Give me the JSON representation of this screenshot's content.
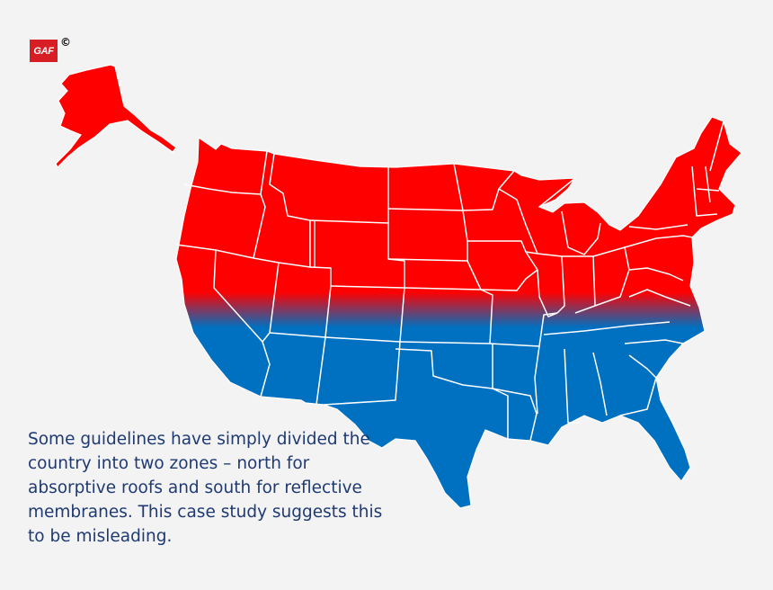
{
  "logo": {
    "text": "GAF",
    "copyright": "©"
  },
  "caption": "Some guidelines have simply divided the country into two zones – north for absorptive roofs and south for reflective membranes. This case study suggests this to be misleading.",
  "map": {
    "regions": [
      {
        "name": "North",
        "color": "#ff0000",
        "meaning": "absorptive roofs"
      },
      {
        "name": "South",
        "color": "#0070c0",
        "meaning": "reflective membranes"
      }
    ],
    "state_border_color": "#ffffff"
  }
}
